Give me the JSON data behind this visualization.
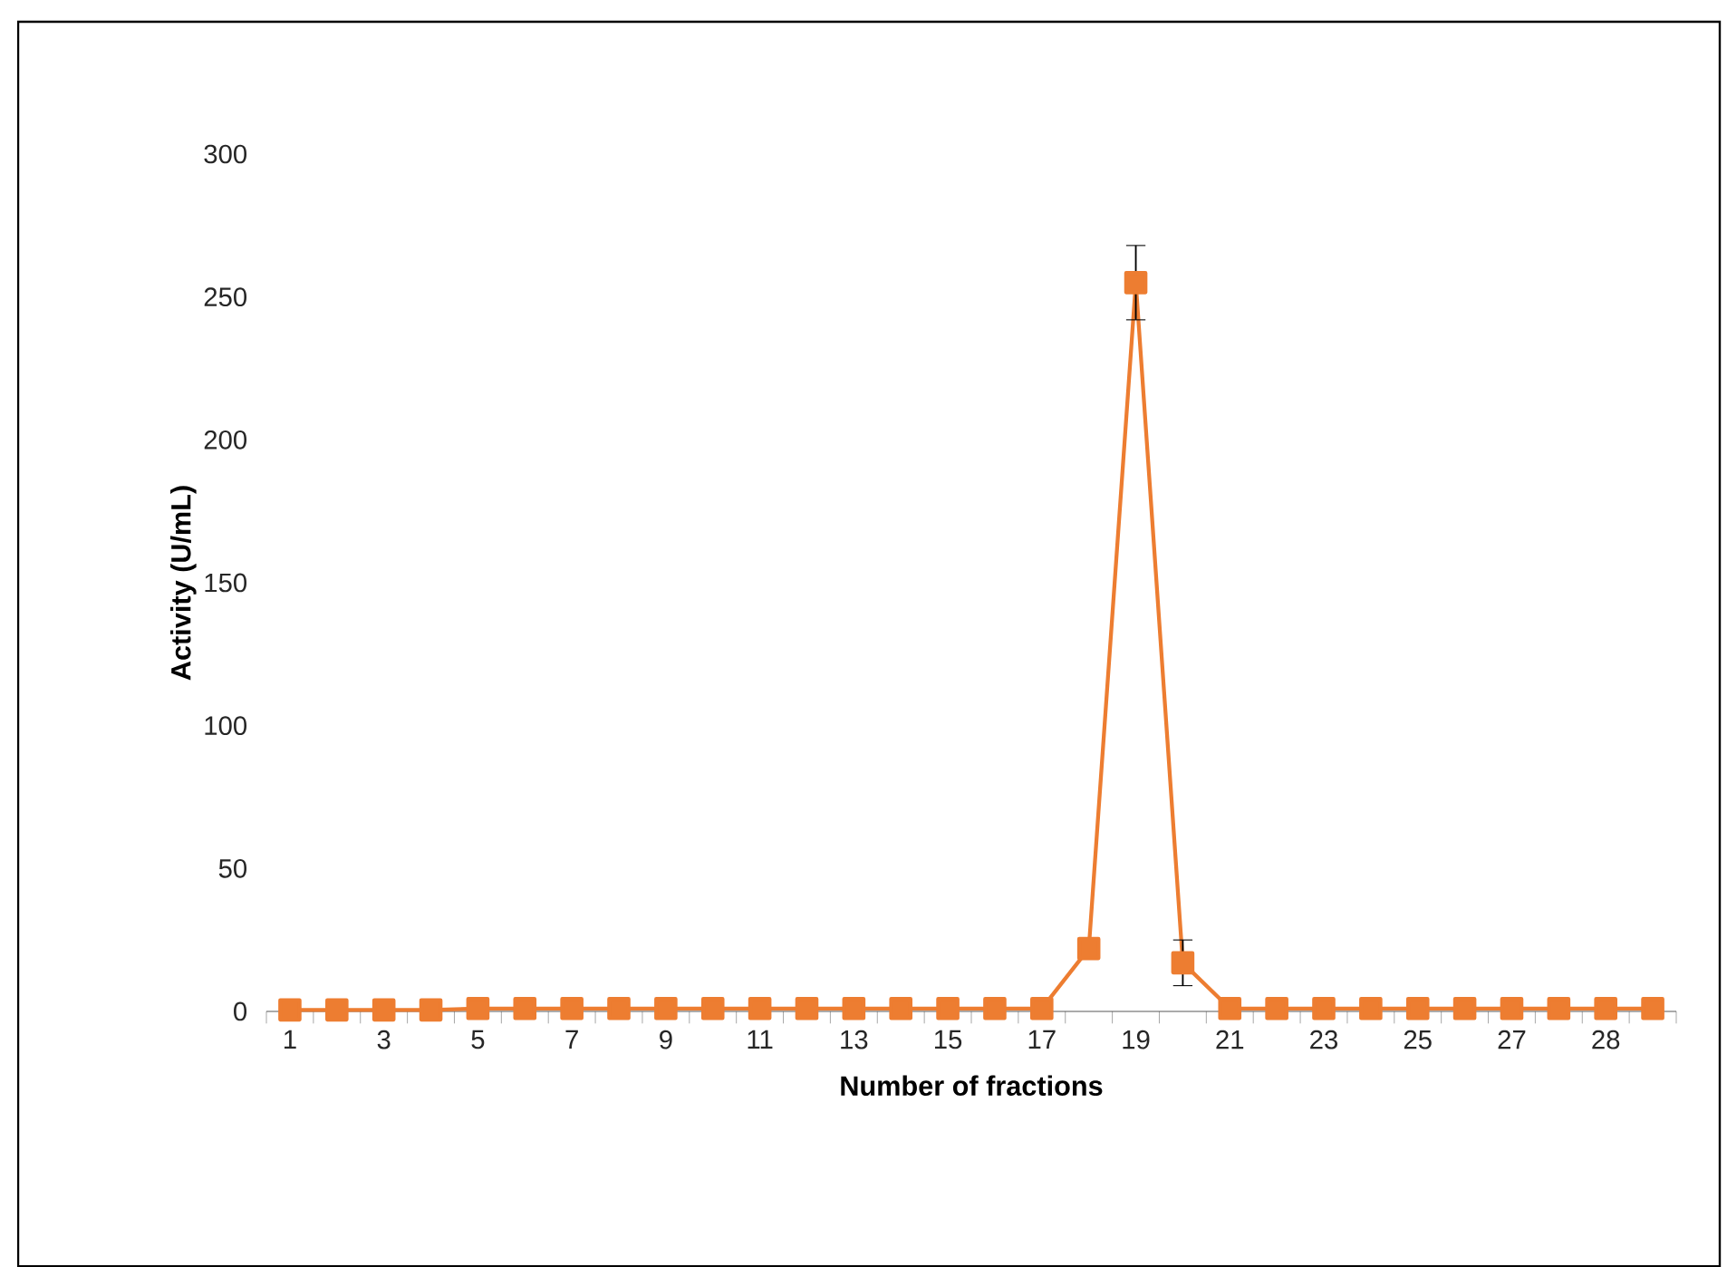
{
  "chart_data": {
    "type": "line",
    "xlabel": "Number of fractions",
    "ylabel": "Activity (U/mL)",
    "categories": [
      "1",
      null,
      "3",
      null,
      "5",
      null,
      "7",
      null,
      "9",
      null,
      "11",
      null,
      "13",
      null,
      "15",
      null,
      "17",
      null,
      "19",
      null,
      "21",
      null,
      "23",
      null,
      "25",
      null,
      "27",
      null,
      "28",
      null
    ],
    "values": [
      0.5,
      0.5,
      0.5,
      0.5,
      1,
      1,
      1,
      1,
      1,
      1,
      1,
      1,
      1,
      1,
      1,
      1,
      1,
      22,
      255,
      17,
      1,
      1,
      1,
      1,
      1,
      1,
      1,
      1,
      1,
      1
    ],
    "errors": [
      null,
      null,
      null,
      null,
      null,
      null,
      null,
      null,
      null,
      null,
      null,
      null,
      null,
      null,
      null,
      null,
      null,
      null,
      13,
      8,
      null,
      null,
      null,
      null,
      null,
      null,
      null,
      null,
      null,
      null
    ],
    "color": "#ed7d31",
    "marker": "square",
    "line_style": "solid",
    "ylim": [
      0,
      300
    ],
    "yticks": [
      0,
      50,
      100,
      150,
      200,
      250,
      300
    ]
  }
}
